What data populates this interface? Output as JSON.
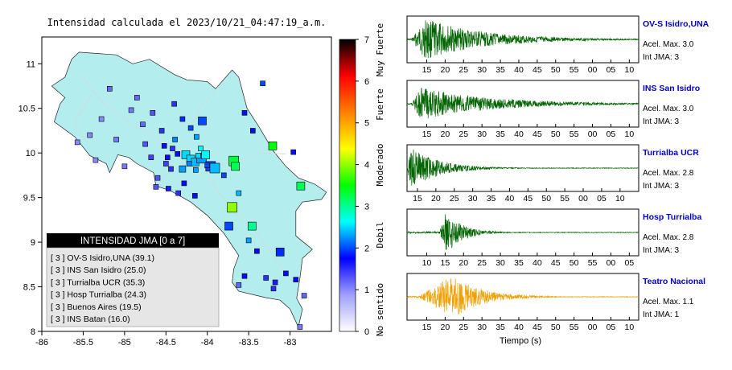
{
  "map": {
    "title": "Intensidad calculada el 2023/10/21_04:47:19_a.m.",
    "xlim": [
      -86,
      -82.5
    ],
    "ylim": [
      8,
      11.3
    ],
    "x_ticks": [
      -86,
      -85.5,
      -85,
      -84.5,
      -84,
      -83.5,
      -83
    ],
    "x_tick_labels": [
      "-86",
      "-85.5",
      "-85",
      "-84.5",
      "-84",
      "-83.5",
      "-83"
    ],
    "y_ticks": [
      8,
      8.5,
      9,
      9.5,
      10,
      10.5,
      11
    ],
    "y_tick_labels": [
      "8",
      "8.5",
      "9",
      "9.5",
      "10",
      "10.5",
      "11"
    ],
    "land_color": "#b4eded",
    "land_outline": [
      [
        -85.64,
        11.05
      ],
      [
        -85.55,
        11.13
      ],
      [
        -85.4,
        11.12
      ],
      [
        -85.1,
        11.1
      ],
      [
        -84.9,
        11.0
      ],
      [
        -84.7,
        11.05
      ],
      [
        -84.4,
        10.88
      ],
      [
        -84.25,
        10.82
      ],
      [
        -84.0,
        10.8
      ],
      [
        -83.9,
        10.72
      ],
      [
        -83.7,
        10.93
      ],
      [
        -83.62,
        10.85
      ],
      [
        -83.52,
        10.5
      ],
      [
        -83.38,
        10.3
      ],
      [
        -83.2,
        10.02
      ],
      [
        -83.05,
        9.85
      ],
      [
        -82.9,
        9.72
      ],
      [
        -82.7,
        9.65
      ],
      [
        -82.56,
        9.56
      ],
      [
        -82.62,
        9.48
      ],
      [
        -82.85,
        9.45
      ],
      [
        -82.93,
        9.35
      ],
      [
        -82.93,
        9.07
      ],
      [
        -82.73,
        8.92
      ],
      [
        -82.85,
        8.82
      ],
      [
        -82.88,
        8.6
      ],
      [
        -82.92,
        8.37
      ],
      [
        -82.85,
        8.25
      ],
      [
        -82.9,
        8.05
      ],
      [
        -83.0,
        8.25
      ],
      [
        -83.12,
        8.35
      ],
      [
        -83.3,
        8.38
      ],
      [
        -83.62,
        8.45
      ],
      [
        -83.7,
        8.55
      ],
      [
        -83.68,
        8.7
      ],
      [
        -83.62,
        8.85
      ],
      [
        -83.8,
        9.1
      ],
      [
        -84.0,
        9.3
      ],
      [
        -84.2,
        9.45
      ],
      [
        -84.45,
        9.58
      ],
      [
        -84.62,
        9.63
      ],
      [
        -84.65,
        9.78
      ],
      [
        -84.85,
        9.88
      ],
      [
        -84.95,
        9.95
      ],
      [
        -85.08,
        9.98
      ],
      [
        -85.18,
        9.78
      ],
      [
        -85.22,
        9.88
      ],
      [
        -85.42,
        9.97
      ],
      [
        -85.6,
        10.18
      ],
      [
        -85.85,
        10.35
      ],
      [
        -85.78,
        10.55
      ],
      [
        -85.72,
        10.62
      ],
      [
        -85.88,
        10.75
      ],
      [
        -85.72,
        10.85
      ],
      [
        -85.68,
        10.95
      ]
    ],
    "stations": [
      {
        "lon": -84.06,
        "lat": 10.36,
        "i": 2.0,
        "s": 10
      },
      {
        "lon": -83.21,
        "lat": 10.08,
        "i": 3.5,
        "s": 10
      },
      {
        "lon": -84.26,
        "lat": 9.98,
        "i": 2.5,
        "s": 10
      },
      {
        "lon": -84.2,
        "lat": 9.93,
        "i": 2.5,
        "s": 10
      },
      {
        "lon": -84.15,
        "lat": 9.9,
        "i": 2.4,
        "s": 10
      },
      {
        "lon": -84.07,
        "lat": 9.94,
        "i": 2.3,
        "s": 12
      },
      {
        "lon": -84.02,
        "lat": 9.98,
        "i": 2.6,
        "s": 10
      },
      {
        "lon": -83.96,
        "lat": 9.85,
        "i": 2.0,
        "s": 12
      },
      {
        "lon": -83.91,
        "lat": 9.83,
        "i": 2.4,
        "s": 12
      },
      {
        "lon": -84.3,
        "lat": 9.82,
        "i": 2.3,
        "s": 8
      },
      {
        "lon": -83.68,
        "lat": 9.91,
        "i": 3.3,
        "s": 12
      },
      {
        "lon": -83.66,
        "lat": 9.85,
        "i": 3.2,
        "s": 10
      },
      {
        "lon": -82.87,
        "lat": 9.63,
        "i": 3.2,
        "s": 10
      },
      {
        "lon": -83.7,
        "lat": 9.39,
        "i": 4.0,
        "s": 12
      },
      {
        "lon": -83.74,
        "lat": 9.18,
        "i": 2.0,
        "s": 10
      },
      {
        "lon": -83.46,
        "lat": 9.18,
        "i": 3.0,
        "s": 10
      },
      {
        "lon": -83.12,
        "lat": 8.89,
        "i": 1.9,
        "s": 10
      },
      {
        "lon": -83.33,
        "lat": 10.78,
        "i": 2.0,
        "s": 6
      },
      {
        "lon": -82.96,
        "lat": 10.01,
        "i": 1.8,
        "s": 6
      },
      {
        "lon": -84.39,
        "lat": 10.15,
        "i": 2.2,
        "s": 6
      },
      {
        "lon": -84.13,
        "lat": 10.18,
        "i": 2.3,
        "s": 6
      },
      {
        "lon": -84.52,
        "lat": 10.08,
        "i": 1.8,
        "s": 6
      },
      {
        "lon": -84.42,
        "lat": 10.05,
        "i": 1.5,
        "s": 6
      },
      {
        "lon": -84.36,
        "lat": 9.99,
        "i": 1.8,
        "s": 6
      },
      {
        "lon": -84.48,
        "lat": 9.95,
        "i": 1.7,
        "s": 6
      },
      {
        "lon": -84.11,
        "lat": 9.97,
        "i": 2.5,
        "s": 6
      },
      {
        "lon": -84.08,
        "lat": 10.05,
        "i": 2.6,
        "s": 6
      },
      {
        "lon": -84.0,
        "lat": 9.86,
        "i": 2.0,
        "s": 6
      },
      {
        "lon": -84.22,
        "lat": 9.88,
        "i": 2.2,
        "s": 6
      },
      {
        "lon": -84.14,
        "lat": 9.81,
        "i": 2.3,
        "s": 6
      },
      {
        "lon": -84.44,
        "lat": 9.82,
        "i": 1.5,
        "s": 6
      },
      {
        "lon": -84.5,
        "lat": 9.88,
        "i": 1.4,
        "s": 6
      },
      {
        "lon": -84.28,
        "lat": 9.66,
        "i": 1.7,
        "s": 6
      },
      {
        "lon": -84.6,
        "lat": 9.72,
        "i": 1.3,
        "s": 6
      },
      {
        "lon": -84.47,
        "lat": 9.6,
        "i": 1.6,
        "s": 6
      },
      {
        "lon": -84.35,
        "lat": 9.55,
        "i": 1.5,
        "s": 6
      },
      {
        "lon": -84.15,
        "lat": 9.52,
        "i": 1.8,
        "s": 6
      },
      {
        "lon": -83.8,
        "lat": 9.75,
        "i": 2.0,
        "s": 6
      },
      {
        "lon": -83.62,
        "lat": 9.55,
        "i": 2.4,
        "s": 6
      },
      {
        "lon": -83.5,
        "lat": 9.02,
        "i": 2.3,
        "s": 6
      },
      {
        "lon": -83.29,
        "lat": 8.6,
        "i": 1.5,
        "s": 6
      },
      {
        "lon": -83.55,
        "lat": 8.62,
        "i": 1.8,
        "s": 6
      },
      {
        "lon": -83.62,
        "lat": 8.52,
        "i": 1.2,
        "s": 6
      },
      {
        "lon": -83.18,
        "lat": 8.55,
        "i": 1.6,
        "s": 6
      },
      {
        "lon": -83.05,
        "lat": 8.65,
        "i": 1.7,
        "s": 6
      },
      {
        "lon": -82.93,
        "lat": 8.58,
        "i": 1.8,
        "s": 6
      },
      {
        "lon": -83.2,
        "lat": 8.48,
        "i": 1.5,
        "s": 6
      },
      {
        "lon": -85.18,
        "lat": 10.72,
        "i": 1.2,
        "s": 6
      },
      {
        "lon": -84.85,
        "lat": 10.62,
        "i": 1.2,
        "s": 6
      },
      {
        "lon": -84.92,
        "lat": 10.48,
        "i": 1.1,
        "s": 6
      },
      {
        "lon": -85.28,
        "lat": 10.38,
        "i": 1.0,
        "s": 6
      },
      {
        "lon": -85.42,
        "lat": 10.2,
        "i": 1.0,
        "s": 6
      },
      {
        "lon": -85.57,
        "lat": 10.12,
        "i": 1.0,
        "s": 6
      },
      {
        "lon": -85.1,
        "lat": 10.15,
        "i": 1.1,
        "s": 6
      },
      {
        "lon": -84.78,
        "lat": 10.32,
        "i": 1.2,
        "s": 6
      },
      {
        "lon": -84.66,
        "lat": 10.45,
        "i": 1.3,
        "s": 6
      },
      {
        "lon": -84.55,
        "lat": 10.25,
        "i": 1.5,
        "s": 6
      },
      {
        "lon": -85.0,
        "lat": 9.85,
        "i": 1.1,
        "s": 6
      },
      {
        "lon": -85.35,
        "lat": 9.92,
        "i": 1.0,
        "s": 6
      },
      {
        "lon": -84.68,
        "lat": 9.95,
        "i": 1.4,
        "s": 6
      },
      {
        "lon": -84.75,
        "lat": 10.1,
        "i": 1.3,
        "s": 6
      },
      {
        "lon": -84.62,
        "lat": 9.62,
        "i": 1.3,
        "s": 6
      },
      {
        "lon": -84.4,
        "lat": 10.55,
        "i": 1.5,
        "s": 6
      },
      {
        "lon": -84.3,
        "lat": 10.38,
        "i": 1.9,
        "s": 6
      },
      {
        "lon": -84.2,
        "lat": 10.28,
        "i": 2.0,
        "s": 6
      },
      {
        "lon": -83.55,
        "lat": 10.45,
        "i": 1.8,
        "s": 6
      },
      {
        "lon": -83.45,
        "lat": 10.25,
        "i": 1.8,
        "s": 6
      },
      {
        "lon": -83.4,
        "lat": 8.9,
        "i": 1.7,
        "s": 6
      },
      {
        "lon": -82.83,
        "lat": 8.4,
        "i": 1.2,
        "s": 6
      },
      {
        "lon": -82.88,
        "lat": 8.05,
        "i": 1.1,
        "s": 6
      }
    ]
  },
  "legend": {
    "title": "INTENSIDAD JMA [0 a 7]",
    "entries": [
      "[ 3 ] OV-S Isidro,UNA (39.1)",
      "[ 3 ] INS San Isidro (25.0)",
      "[ 3 ] Turrialba UCR (35.3)",
      "[ 3 ] Hosp Turrialba (24.3)",
      "[ 3 ] Buenos Aires (19.5)",
      "[ 3 ] INS Batan (16.0)"
    ]
  },
  "colorbar": {
    "min": 0,
    "max": 7,
    "tick_labels": [
      "0",
      "1",
      "2",
      "3",
      "4",
      "5",
      "6",
      "7"
    ],
    "category_labels": [
      "No sentido",
      "Debil",
      "Moderado",
      "Fuerte",
      "Muy Fuerte"
    ],
    "stops": [
      "#ffffff",
      "#a0a0ff",
      "#0000ff",
      "#00ffff",
      "#00ff00",
      "#ffff00",
      "#ff8000",
      "#ff0000",
      "#000000"
    ]
  },
  "waveforms": {
    "xlabel": "Tiempo (s)",
    "panels": [
      {
        "station": "OV-S Isidro,UNA",
        "acel": "Acel. Max. 3.0",
        "jma": "Int JMA: 3",
        "color": "#006400",
        "tick_labels": [
          "15",
          "20",
          "25",
          "30",
          "35",
          "40",
          "45",
          "50",
          "55",
          "00",
          "05",
          "10"
        ],
        "tick_start": 0.085,
        "tick_step": 0.0795,
        "onset": 0.02,
        "peak": 0.08,
        "decay": 0.25,
        "amp": 0.95
      },
      {
        "station": "INS San Isidro",
        "acel": "Acel. Max. 3.0",
        "jma": "Int JMA: 3",
        "color": "#006400",
        "tick_labels": [
          "15",
          "20",
          "25",
          "30",
          "35",
          "40",
          "45",
          "50",
          "55",
          "00",
          "05",
          "10"
        ],
        "tick_start": 0.085,
        "tick_step": 0.0795,
        "onset": 0.02,
        "peak": 0.06,
        "decay": 0.3,
        "amp": 0.75
      },
      {
        "station": "Turrialba UCR",
        "acel": "Acel. Max. 2.8",
        "jma": "Int JMA: 3",
        "color": "#006400",
        "tick_labels": [
          "15",
          "20",
          "25",
          "30",
          "35",
          "40",
          "45",
          "50",
          "55",
          "00",
          "05",
          "10"
        ],
        "tick_start": 0.045,
        "tick_step": 0.0795,
        "onset": 0.0,
        "peak": 0.02,
        "decay": 0.12,
        "amp": 0.95
      },
      {
        "station": "Hosp Turrialba",
        "acel": "Acel. Max. 2.8",
        "jma": "Int JMA: 3",
        "color": "#006400",
        "tick_labels": [
          "10",
          "15",
          "20",
          "25",
          "30",
          "35",
          "40",
          "45",
          "50",
          "55",
          "00",
          "05"
        ],
        "tick_start": 0.085,
        "tick_step": 0.0795,
        "onset": 0.14,
        "peak": 0.17,
        "decay": 0.07,
        "amp": 1.0
      },
      {
        "station": "Teatro Nacional",
        "acel": "Acel. Max. 1.1",
        "jma": "Int JMA: 1",
        "color": "#f0a000",
        "tick_labels": [
          "15",
          "20",
          "25",
          "30",
          "35",
          "40",
          "45",
          "50",
          "55",
          "00",
          "05",
          "10"
        ],
        "tick_start": 0.085,
        "tick_step": 0.0795,
        "onset": 0.05,
        "peak": 0.2,
        "decay": 0.12,
        "amp": 1.0
      }
    ]
  }
}
